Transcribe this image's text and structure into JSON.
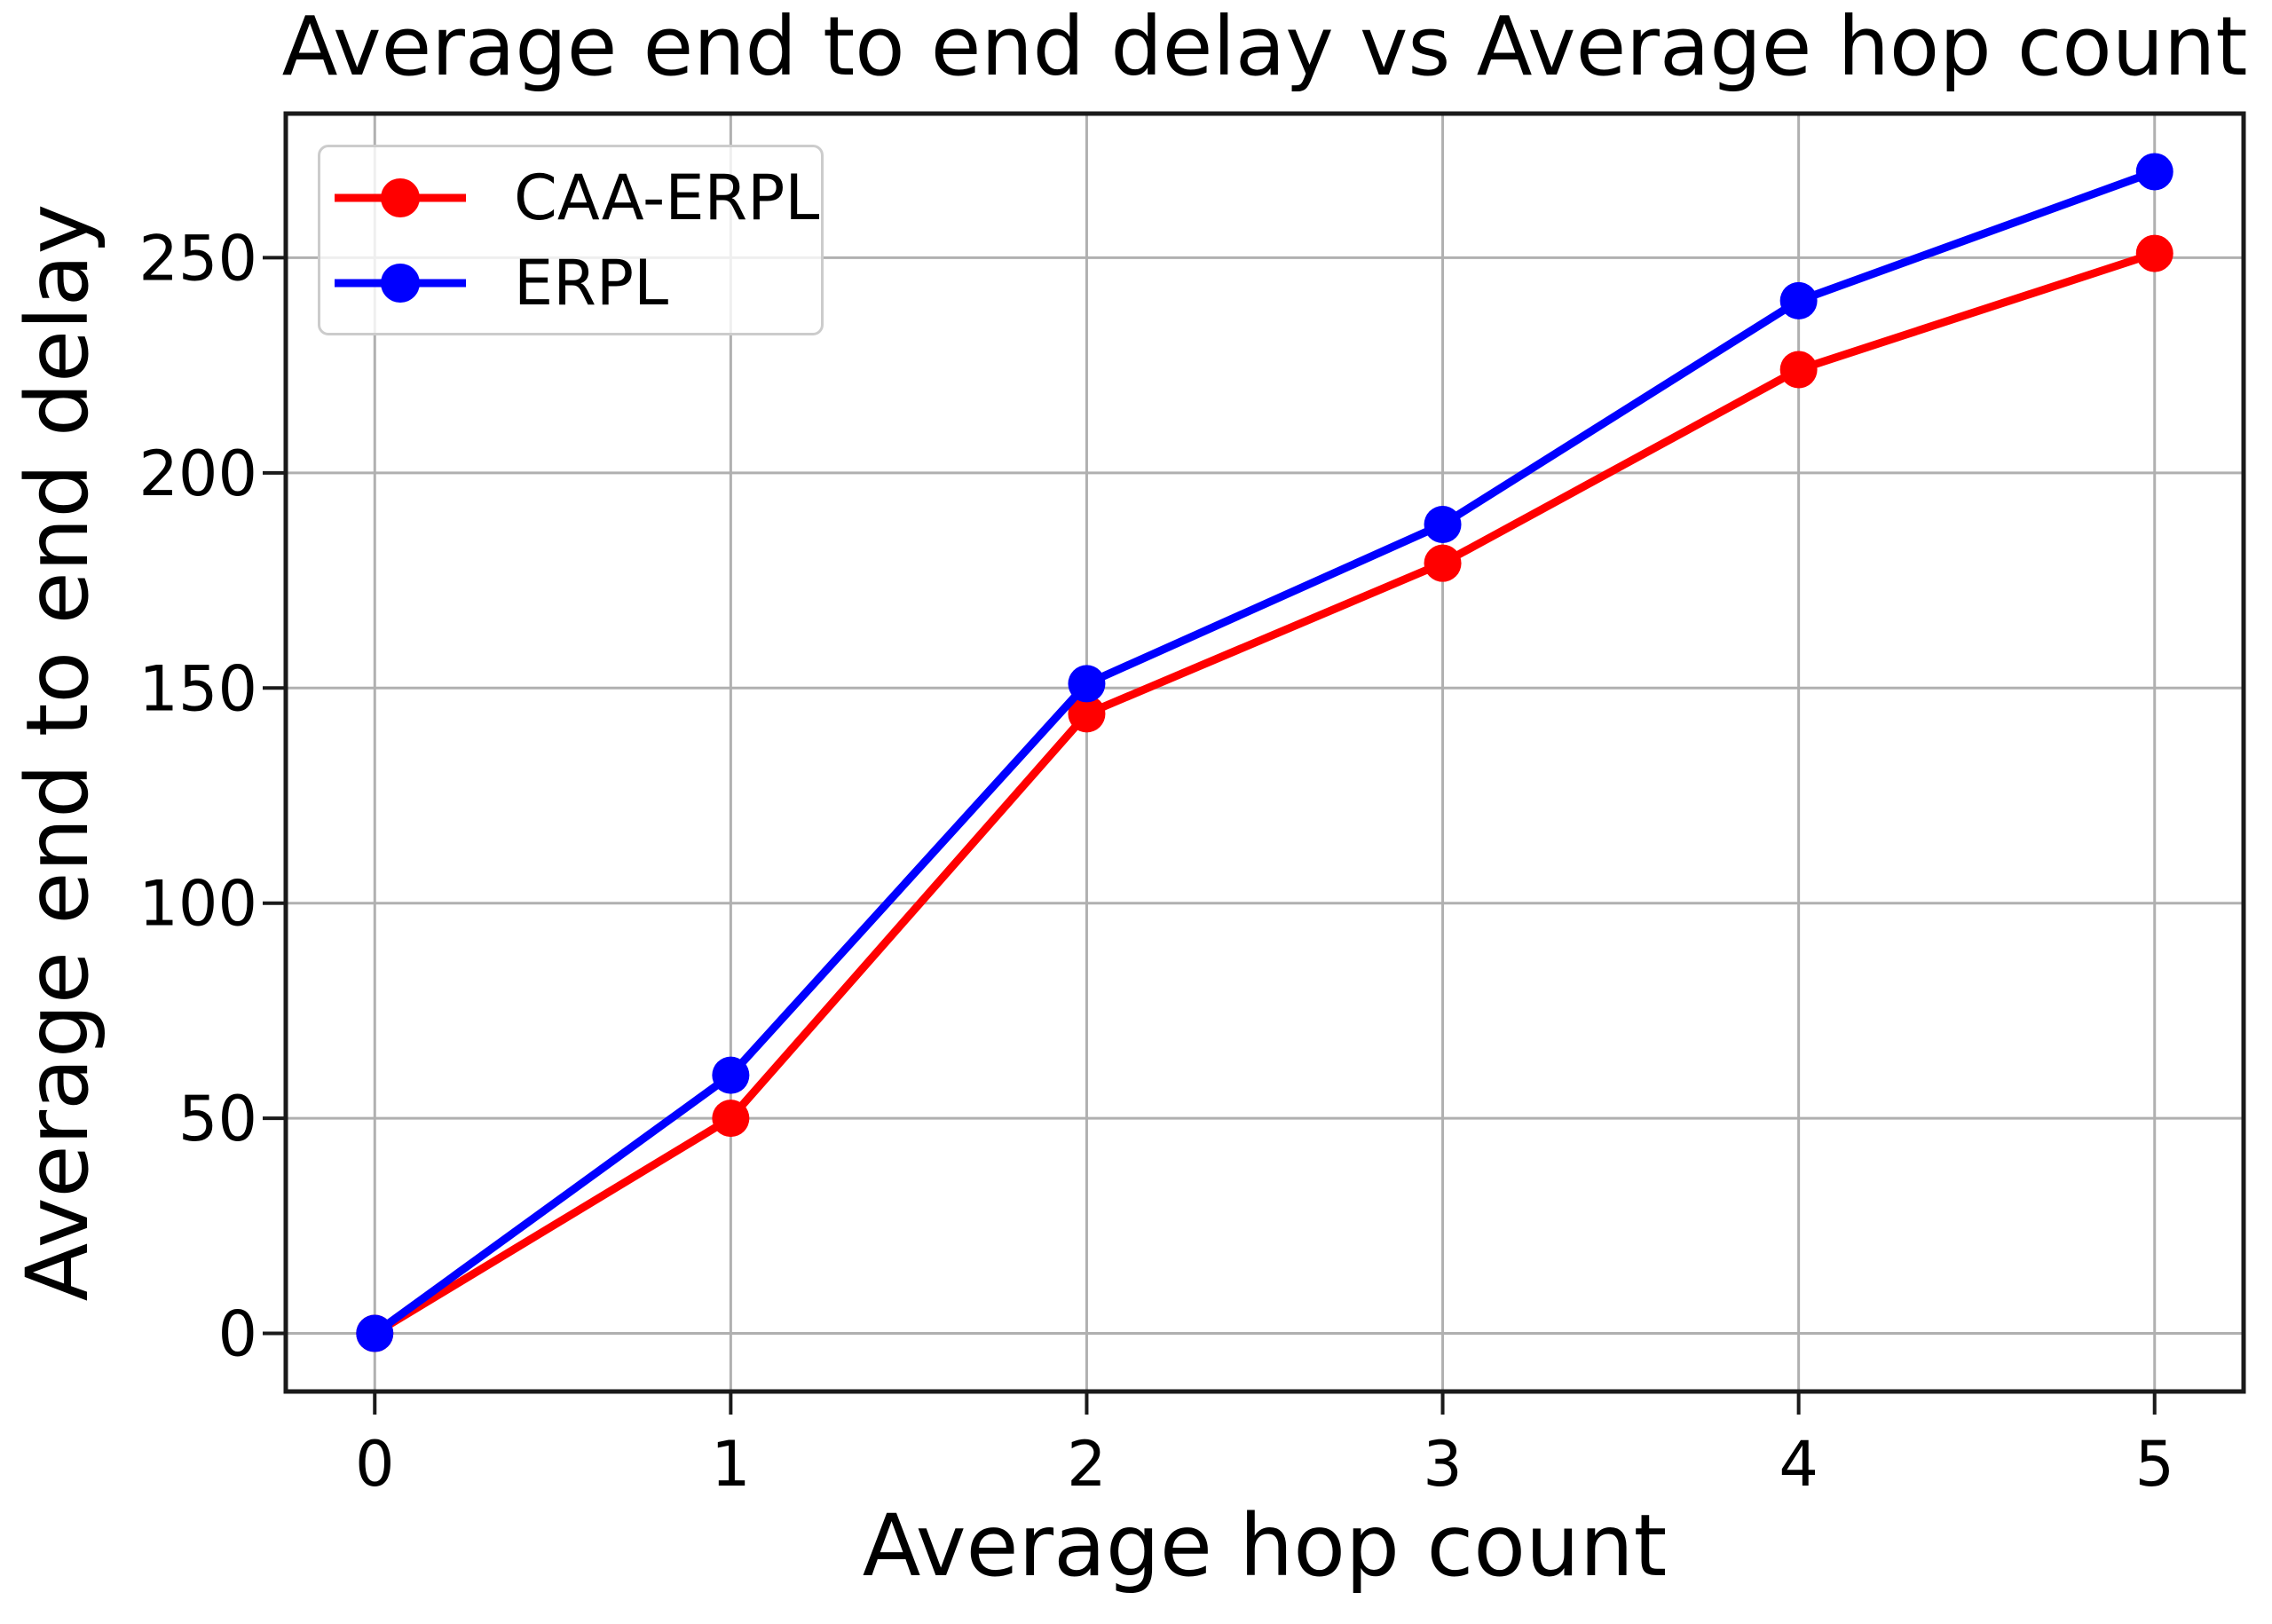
{
  "chart_data": {
    "type": "line",
    "title": "Average end to end delay vs Average hop count",
    "xlabel": "Average hop count",
    "ylabel": "Average end to end delay",
    "x": [
      0,
      1,
      2,
      3,
      4,
      5
    ],
    "series": [
      {
        "name": "CAA-ERPL",
        "color": "#ff0000",
        "values": [
          0,
          50,
          144,
          179,
          224,
          251
        ]
      },
      {
        "name": "ERPL",
        "color": "#0000ff",
        "values": [
          0,
          60,
          151,
          188,
          240,
          270
        ]
      }
    ],
    "xlim": [
      -0.25,
      5.25
    ],
    "ylim": [
      -13.5,
      283.5
    ],
    "xticks": [
      0,
      1,
      2,
      3,
      4,
      5
    ],
    "yticks": [
      0,
      50,
      100,
      150,
      200,
      250
    ],
    "grid": true,
    "legend_position": "upper left",
    "style": {
      "grid_color": "#b0b0b0",
      "spine_color": "#1a1a1a",
      "text_color": "#000000",
      "legend_border_color": "#cccccc",
      "background": "#ffffff",
      "line_width": 9,
      "marker_radius": 21
    }
  }
}
